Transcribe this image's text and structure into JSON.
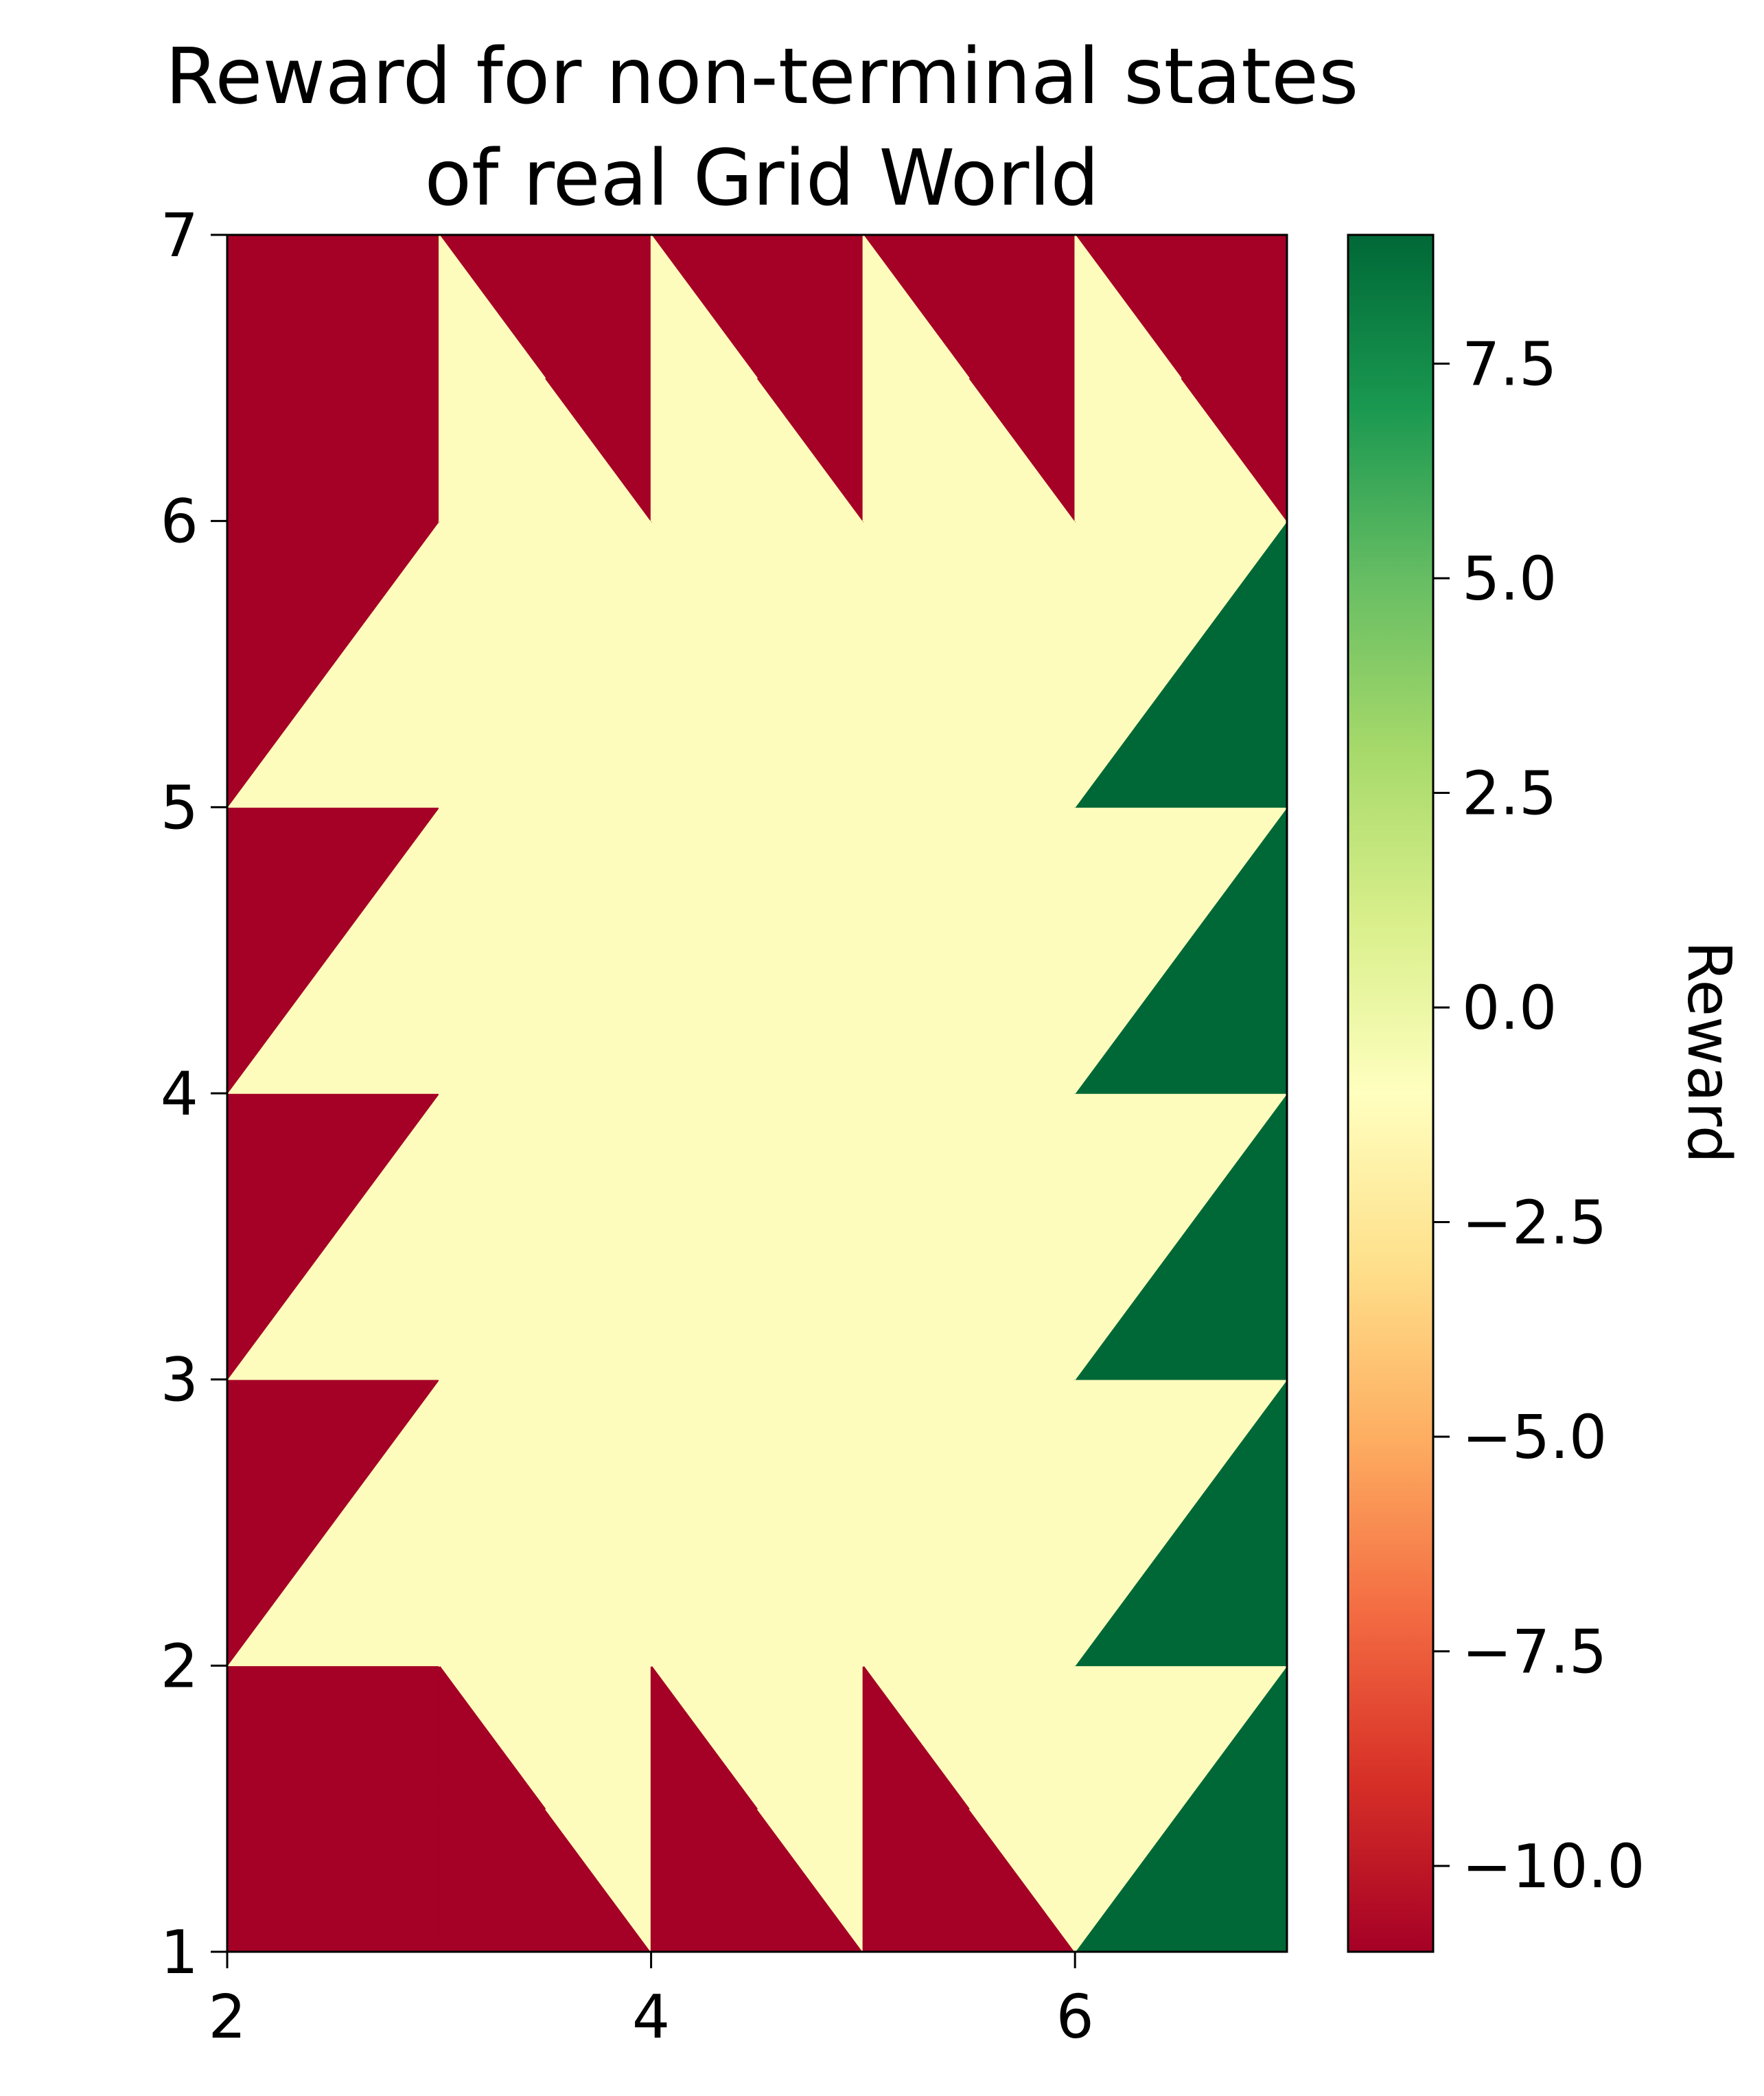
{
  "chart_data": {
    "type": "heatmap",
    "title": [
      "Reward for non-terminal states",
      "of real Grid World"
    ],
    "xlim": [
      2,
      7
    ],
    "ylim": [
      1,
      7
    ],
    "x_ticks": [
      2,
      4,
      6
    ],
    "y_ticks": [
      1,
      2,
      3,
      4,
      5,
      6,
      7
    ],
    "grid": false,
    "colormap": "RdYlGn",
    "colormap_stops": [
      "#a50026",
      "#d73027",
      "#f46d43",
      "#fdae61",
      "#fee08b",
      "#ffffbf",
      "#d9ef8b",
      "#a6d96a",
      "#66bd63",
      "#1a9850",
      "#006837"
    ],
    "colorbar": {
      "label": "Reward",
      "vmin": -11,
      "vmax": 9,
      "ticks": [
        7.5,
        5.0,
        2.5,
        0.0,
        -2.5,
        -5.0,
        -7.5,
        -10.0
      ],
      "tick_labels": [
        "7.5",
        "5.0",
        "2.5",
        "0.0",
        "−2.5",
        "−5.0",
        "−7.5",
        "−10.0"
      ]
    },
    "cell_x": [
      2,
      3,
      4,
      5,
      6,
      7
    ],
    "cell_y": [
      1,
      2,
      3,
      4,
      5,
      6,
      7
    ],
    "values": [
      [
        -11,
        -11,
        -11,
        -11,
        -11,
        9
      ],
      [
        -11,
        -1,
        -1,
        -1,
        -1,
        9
      ],
      [
        -11,
        -1,
        -1,
        -1,
        -1,
        9
      ],
      [
        -11,
        -1,
        -1,
        -1,
        -1,
        9
      ],
      [
        -11,
        -1,
        -1,
        -1,
        -1,
        9
      ],
      [
        -11,
        -1,
        -1,
        -1,
        -1,
        9
      ],
      [
        -11,
        -11,
        -11,
        -11,
        -11,
        -11
      ]
    ],
    "value_colors": {
      "-11": "#a50026",
      "-1": "#fefcbc",
      "9": "#006837"
    }
  }
}
